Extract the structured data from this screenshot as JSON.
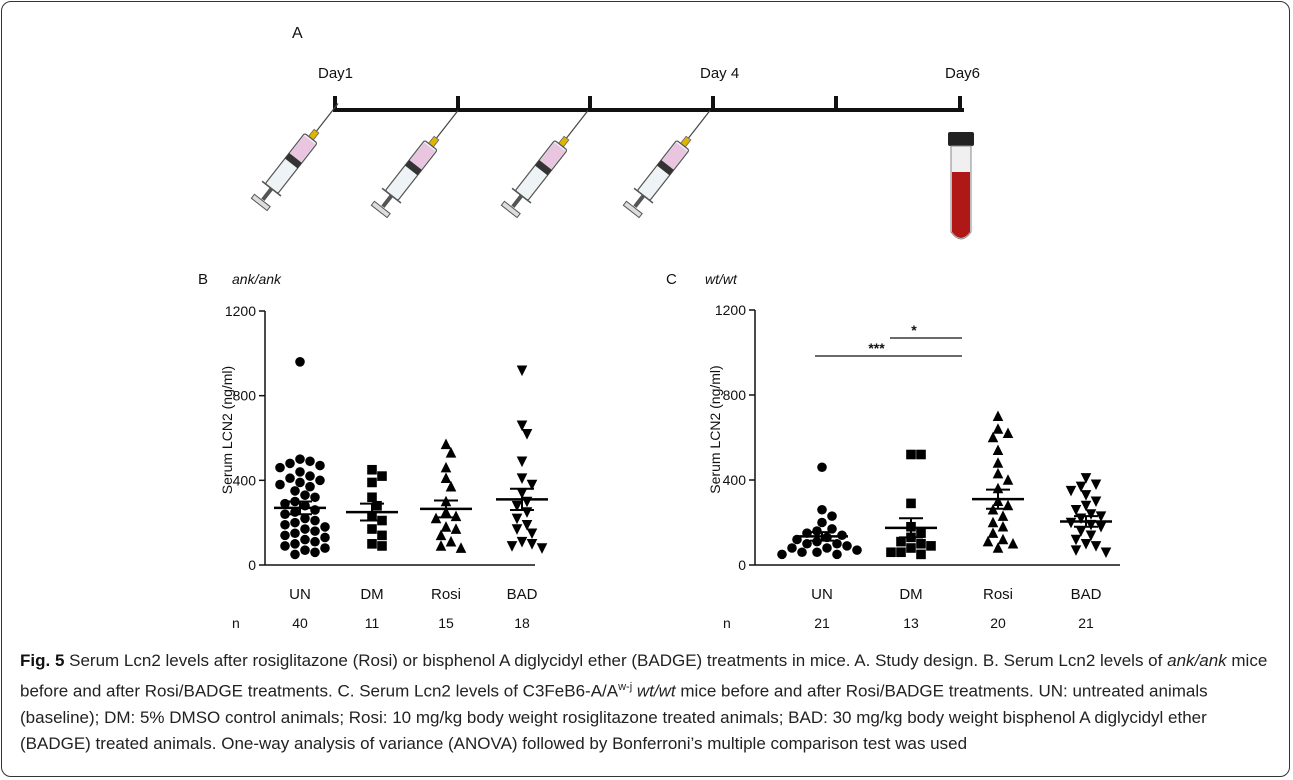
{
  "panel_a": {
    "label": "A",
    "days": [
      "Day1",
      "Day 4",
      "Day6"
    ]
  },
  "chart_data": [
    {
      "type": "dotplot",
      "panel": "B",
      "title": "ank/ank",
      "y_label": "Serum LCN2 (ng/ml)",
      "categories": [
        "UN",
        "DM",
        "Rosi",
        "BAD"
      ],
      "n_label": "n",
      "n_values": [
        40,
        11,
        15,
        18
      ],
      "markers": [
        "circle",
        "square",
        "triangle-up",
        "triangle-down"
      ],
      "color": "#000000",
      "ylim": [
        0,
        1200
      ],
      "yticks": [
        0,
        400,
        800,
        1200
      ],
      "values": [
        [
          960,
          500,
          490,
          480,
          470,
          460,
          440,
          420,
          410,
          400,
          390,
          380,
          370,
          350,
          330,
          320,
          300,
          290,
          280,
          260,
          250,
          240,
          220,
          210,
          200,
          190,
          180,
          170,
          160,
          150,
          140,
          130,
          120,
          110,
          100,
          90,
          80,
          70,
          60,
          50
        ],
        [
          450,
          420,
          390,
          320,
          280,
          230,
          210,
          170,
          140,
          100,
          90
        ],
        [
          570,
          530,
          460,
          410,
          370,
          300,
          250,
          230,
          220,
          180,
          170,
          140,
          110,
          90,
          80
        ],
        [
          920,
          660,
          620,
          490,
          410,
          380,
          340,
          300,
          280,
          250,
          220,
          190,
          170,
          150,
          110,
          100,
          90,
          80
        ]
      ],
      "means": [
        270,
        250,
        265,
        310
      ],
      "sems": [
        30,
        40,
        40,
        50
      ]
    },
    {
      "type": "dotplot",
      "panel": "C",
      "title": "wt/wt",
      "y_label": "Serum LCN2 (ng/ml)",
      "categories": [
        "UN",
        "DM",
        "Rosi",
        "BAD"
      ],
      "n_label": "n",
      "n_values": [
        21,
        13,
        20,
        21
      ],
      "markers": [
        "circle",
        "square",
        "triangle-up",
        "triangle-down"
      ],
      "color": "#000000",
      "ylim": [
        0,
        1200
      ],
      "yticks": [
        0,
        400,
        800,
        1200
      ],
      "values": [
        [
          460,
          260,
          230,
          200,
          170,
          160,
          150,
          140,
          130,
          120,
          110,
          100,
          100,
          90,
          80,
          80,
          70,
          60,
          60,
          50,
          50
        ],
        [
          520,
          520,
          290,
          180,
          150,
          130,
          110,
          100,
          90,
          80,
          60,
          60,
          50
        ],
        [
          700,
          640,
          620,
          600,
          540,
          480,
          430,
          400,
          360,
          300,
          280,
          260,
          230,
          200,
          180,
          150,
          120,
          110,
          100,
          80
        ],
        [
          410,
          380,
          370,
          350,
          330,
          300,
          280,
          260,
          240,
          230,
          220,
          200,
          190,
          180,
          160,
          140,
          120,
          100,
          90,
          70,
          60
        ]
      ],
      "means": [
        135,
        175,
        310,
        205
      ],
      "sems": [
        20,
        45,
        45,
        25
      ],
      "annotations": [
        "*",
        "***"
      ]
    }
  ],
  "caption": {
    "label": "Fig. 5",
    "parts": [
      "Serum Lcn2 levels after rosiglitazone (Rosi) or bisphenol A diglycidyl ether (BADGE) treatments in mice. A. Study design. B. Serum Lcn2 levels of",
      "ank/ank",
      "mice before and after Rosi/BADGE treatments. C. Serum Lcn2 levels of C3FeB6-A/A",
      "w-j",
      "wt/wt",
      "mice before and after Rosi/BADGE treatments. UN: untreated animals (baseline); DM: 5% DMSO control animals; Rosi: 10 mg/kg body weight rosiglitazone treated animals; BAD: 30 mg/kg body weight bisphenol A diglycidyl ether (BADGE) treated animals. One-way analysis of variance (ANOVA) followed by Bonferroni’s multiple comparison test was used"
    ]
  }
}
